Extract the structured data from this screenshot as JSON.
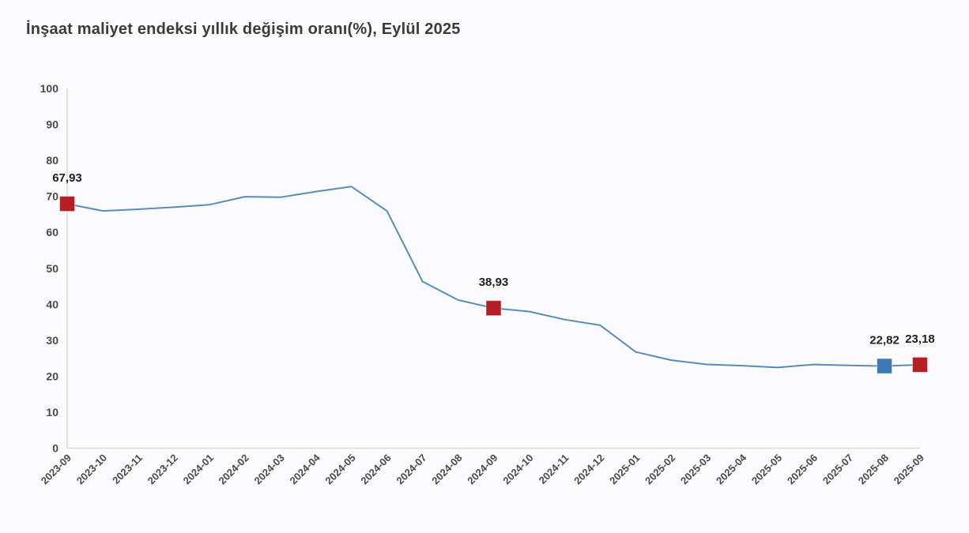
{
  "title": "İnşaat maliyet endeksi yıllık değişim oranı(%), Eylül 2025",
  "colors": {
    "background": "#fbfafc",
    "title_text": "#3b3b3b",
    "tick_text": "#4a4a4a",
    "label_text": "#1f1f1f",
    "axis_line": "#dcdae0",
    "line": "#5a8cb8",
    "marker_red": "#b41f24",
    "marker_blue": "#3d7ab8"
  },
  "chart_data": {
    "type": "line",
    "title": "İnşaat maliyet endeksi yıllık değişim oranı(%), Eylül 2025",
    "xlabel": "",
    "ylabel": "",
    "ylim": [
      0,
      100
    ],
    "ytick_step": 10,
    "grid": false,
    "legend": "none",
    "categories": [
      "2023-09",
      "2023-10",
      "2023-11",
      "2023-12",
      "2024-01",
      "2024-02",
      "2024-03",
      "2024-04",
      "2024-05",
      "2024-06",
      "2024-07",
      "2024-08",
      "2024-09",
      "2024-10",
      "2024-11",
      "2024-12",
      "2025-01",
      "2025-02",
      "2025-03",
      "2025-04",
      "2025-05",
      "2025-06",
      "2025-07",
      "2025-08",
      "2025-09"
    ],
    "values": [
      67.93,
      65.96,
      66.41,
      66.99,
      67.67,
      69.91,
      69.75,
      71.33,
      72.71,
      65.93,
      46.32,
      41.18,
      38.93,
      37.97,
      35.75,
      34.16,
      26.75,
      24.45,
      23.27,
      22.93,
      22.42,
      23.25,
      22.98,
      22.82,
      23.18
    ],
    "labeled_points": [
      {
        "category": "2023-09",
        "value": 67.93,
        "label": "67,93",
        "marker": "red"
      },
      {
        "category": "2024-09",
        "value": 38.93,
        "label": "38,93",
        "marker": "red"
      },
      {
        "category": "2025-08",
        "value": 22.82,
        "label": "22,82",
        "marker": "blue"
      },
      {
        "category": "2025-09",
        "value": 23.18,
        "label": "23,18",
        "marker": "red"
      }
    ]
  }
}
